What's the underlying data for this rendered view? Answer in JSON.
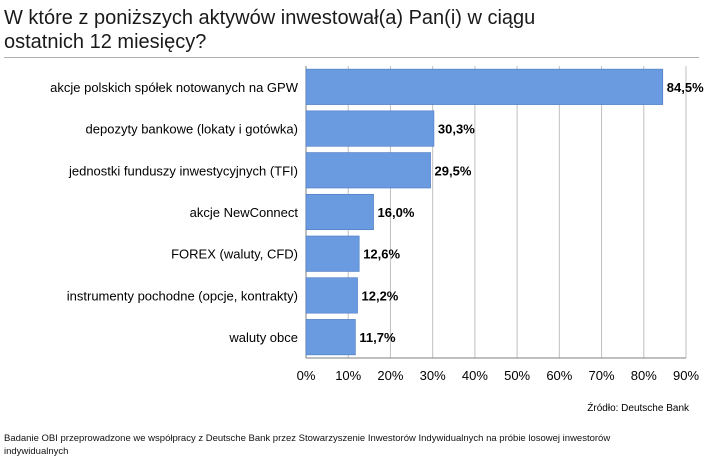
{
  "header": {
    "title": "W które z poniższych  aktywów inwestował(a) Pan(i)  w ciągu\nostatnich  12 miesięcy?"
  },
  "chart_data": {
    "type": "bar",
    "orientation": "horizontal",
    "categories": [
      "akcje polskich spółek notowanych na GPW",
      "depozyty bankowe (lokaty i gotówka)",
      "jednostki funduszy inwestycyjnych (TFI)",
      "akcje NewConnect",
      "FOREX (waluty, CFD)",
      "instrumenty pochodne (opcje, kontrakty)",
      "waluty obce"
    ],
    "values": [
      84.5,
      30.3,
      29.5,
      16.0,
      12.6,
      12.2,
      11.7
    ],
    "value_labels": [
      "84,5%",
      "30,3%",
      "29,5%",
      "16,0%",
      "12,6%",
      "12,2%",
      "11,7%"
    ],
    "x_ticks": [
      "0%",
      "10%",
      "20%",
      "30%",
      "40%",
      "50%",
      "60%",
      "70%",
      "80%",
      "90%"
    ],
    "xlim": [
      0,
      90
    ],
    "grid": true,
    "legend": "none",
    "bar_color": "#6a9be0",
    "bar_edge_color": "#4a78c0",
    "grid_color": "#bfbfbf"
  },
  "source": "Źródło: Deutsche Bank",
  "footnote": "Badanie OBI przeprowadzone we współpracy z Deutsche Bank przez Stowarzyszenie Inwestorów Indywidualnych na próbie losowej inwestorów indywidualnych"
}
